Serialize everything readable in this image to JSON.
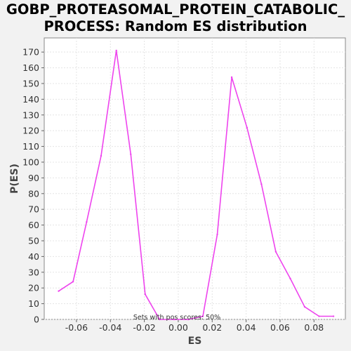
{
  "chart_data": {
    "type": "line",
    "title_line1": "GOBP_PROTEASOMAL_PROTEIN_CATABOLIC_",
    "title_line2": "PROCESS: Random ES distribution",
    "xlabel": "ES",
    "ylabel": "P(ES)",
    "annotation": "Sets with pos scores: 50%",
    "xlim": [
      -0.079,
      0.0985
    ],
    "ylim": [
      0,
      179
    ],
    "x_ticks": [
      -0.06,
      -0.04,
      -0.02,
      0.0,
      0.02,
      0.04,
      0.06,
      0.08
    ],
    "x_tick_labels": [
      "-0.06",
      "-0.04",
      "-0.02",
      "0.00",
      "0.02",
      "0.04",
      "0.06",
      "0.08"
    ],
    "y_ticks": [
      0,
      10,
      20,
      30,
      40,
      50,
      60,
      70,
      80,
      90,
      100,
      110,
      120,
      130,
      140,
      150,
      160,
      170
    ],
    "y_tick_labels": [
      "0",
      "10",
      "20",
      "30",
      "40",
      "50",
      "60",
      "70",
      "80",
      "90",
      "100",
      "110",
      "120",
      "130",
      "140",
      "150",
      "160",
      "170"
    ],
    "grid": true,
    "line_color": "#ee44ee",
    "series": [
      {
        "x": [
          -0.0705,
          -0.062,
          -0.054,
          -0.0455,
          -0.0365,
          -0.028,
          -0.0195,
          -0.011,
          -0.0025,
          0.006,
          0.0145,
          0.023,
          0.0315,
          0.0405,
          0.049,
          0.0575,
          0.066,
          0.0745,
          0.083,
          0.0915
        ],
        "values": [
          18,
          24,
          62,
          104,
          171,
          105,
          16,
          0,
          0,
          0,
          2,
          54,
          154,
          122,
          86,
          43,
          26,
          8,
          2,
          2
        ]
      }
    ]
  }
}
